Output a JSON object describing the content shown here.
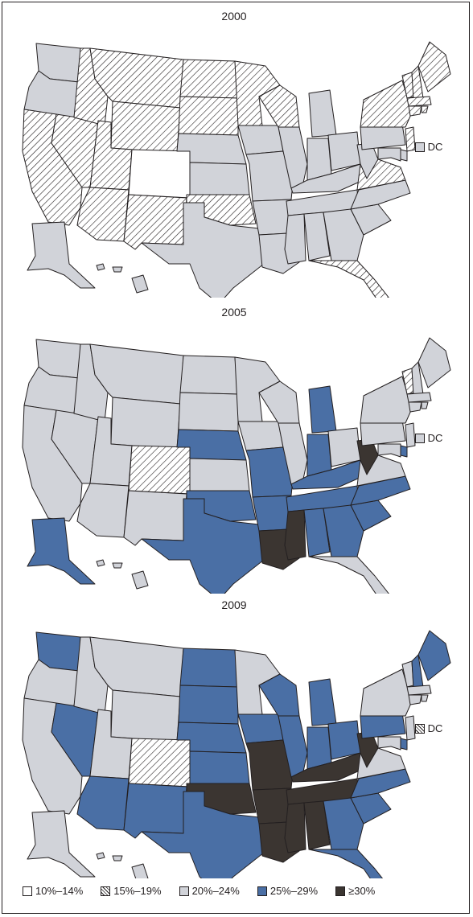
{
  "colors": {
    "c10": "#ffffff",
    "c15": "hatch",
    "c20": "#d1d3d9",
    "c25": "#4a6fa5",
    "c30": "#3b3531",
    "stroke": "#231f20"
  },
  "dc_label": "DC",
  "legend": [
    {
      "key": "c10",
      "label": "10%–14%"
    },
    {
      "key": "c15",
      "label": "15%–19%"
    },
    {
      "key": "c20",
      "label": "20%–24%"
    },
    {
      "key": "c25",
      "label": "25%–29%"
    },
    {
      "key": "c30",
      "label": "≥30%"
    }
  ],
  "maps": [
    {
      "year": "2000",
      "dc": "c20",
      "states": {
        "WA": "c20",
        "OR": "c20",
        "CA": "c15",
        "NV": "c15",
        "ID": "c15",
        "MT": "c15",
        "WY": "c15",
        "UT": "c15",
        "AZ": "c15",
        "CO": "c10",
        "NM": "c15",
        "ND": "c15",
        "SD": "c15",
        "NE": "c20",
        "KS": "c20",
        "OK": "c15",
        "TX": "c20",
        "MN": "c15",
        "IA": "c20",
        "MO": "c20",
        "AR": "c20",
        "LA": "c20",
        "WI": "c15",
        "IL": "c20",
        "MI": "c20",
        "IN": "c20",
        "OH": "c20",
        "KY": "c20",
        "TN": "c20",
        "MS": "c20",
        "AL": "c20",
        "GA": "c20",
        "FL": "c15",
        "SC": "c20",
        "NC": "c20",
        "VA": "c15",
        "WV": "c20",
        "PA": "c20",
        "NY": "c15",
        "VT": "c15",
        "NH": "c15",
        "ME": "c15",
        "MA": "c15",
        "CT": "c15",
        "RI": "c15",
        "NJ": "c15",
        "DE": "c20",
        "MD": "c20",
        "AK": "c20",
        "HI": "c20"
      }
    },
    {
      "year": "2005",
      "dc": "c20",
      "states": {
        "WA": "c20",
        "OR": "c20",
        "CA": "c20",
        "NV": "c20",
        "ID": "c20",
        "MT": "c20",
        "WY": "c20",
        "UT": "c20",
        "AZ": "c20",
        "CO": "c15",
        "NM": "c20",
        "ND": "c20",
        "SD": "c20",
        "NE": "c25",
        "KS": "c20",
        "OK": "c25",
        "TX": "c25",
        "MN": "c20",
        "IA": "c20",
        "MO": "c25",
        "AR": "c25",
        "LA": "c30",
        "WI": "c20",
        "IL": "c20",
        "MI": "c25",
        "IN": "c25",
        "OH": "c20",
        "KY": "c25",
        "TN": "c25",
        "MS": "c30",
        "AL": "c25",
        "GA": "c25",
        "FL": "c20",
        "SC": "c25",
        "NC": "c25",
        "VA": "c20",
        "WV": "c30",
        "PA": "c20",
        "NY": "c20",
        "VT": "c15",
        "NH": "c20",
        "ME": "c20",
        "MA": "c20",
        "CT": "c20",
        "RI": "c20",
        "NJ": "c20",
        "DE": "c25",
        "MD": "c20",
        "AK": "c25",
        "HI": "c20"
      }
    },
    {
      "year": "2009",
      "dc": "c15",
      "states": {
        "WA": "c25",
        "OR": "c20",
        "CA": "c20",
        "NV": "c25",
        "ID": "c20",
        "MT": "c20",
        "WY": "c20",
        "UT": "c20",
        "AZ": "c25",
        "CO": "c15",
        "NM": "c25",
        "ND": "c25",
        "SD": "c25",
        "NE": "c25",
        "KS": "c25",
        "OK": "c30",
        "TX": "c25",
        "MN": "c20",
        "IA": "c25",
        "MO": "c30",
        "AR": "c30",
        "LA": "c30",
        "WI": "c25",
        "IL": "c25",
        "MI": "c25",
        "IN": "c25",
        "OH": "c25",
        "KY": "c30",
        "TN": "c30",
        "MS": "c30",
        "AL": "c30",
        "GA": "c25",
        "FL": "c25",
        "SC": "c25",
        "NC": "c25",
        "VA": "c20",
        "WV": "c30",
        "PA": "c25",
        "NY": "c20",
        "VT": "c20",
        "NH": "c25",
        "ME": "c25",
        "MA": "c20",
        "CT": "c20",
        "RI": "c20",
        "NJ": "c20",
        "DE": "c25",
        "MD": "c20",
        "AK": "c20",
        "HI": "c20"
      }
    }
  ]
}
